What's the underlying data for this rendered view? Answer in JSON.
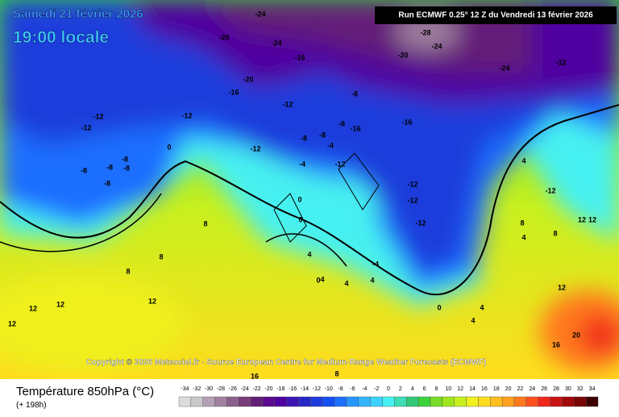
{
  "header": {
    "date": "Samedi 21 février 2026",
    "time": "19:00 locale",
    "run": "Run ECMWF 0.25° 12 Z du Vendredi 13 février 2026"
  },
  "copyright": "Copyright © 2026 Meteociel.fr - Source European Centre for Medium-Range Weather Forecasts (ECMWF)",
  "contour_labels": [
    "-24",
    "-20",
    "-24",
    "-16",
    "-28",
    "-24",
    "-20",
    "-24",
    "-12",
    "-20",
    "-16",
    "-12",
    "-8",
    "-12",
    "-12",
    "-12",
    "-8",
    "-16",
    "-16",
    "-8",
    "-8",
    "-4",
    "-12",
    "0",
    "-8",
    "-8",
    "-8",
    "-8",
    "-8",
    "-4",
    "-12",
    "4",
    "-12",
    "-12",
    "-12",
    "0",
    "8",
    "-12",
    "0",
    "12",
    "12",
    "8",
    "4",
    "8",
    "4",
    "8",
    "8",
    "-4",
    "4",
    "4",
    "4",
    "0",
    "12",
    "12",
    "12",
    "12",
    "12",
    "0",
    "4",
    "4",
    "20",
    "16",
    "16",
    "8"
  ],
  "legend": {
    "title": "Température 850hPa (°C)",
    "lead": "(+ 198h)",
    "scale": [
      -34,
      -32,
      -30,
      -28,
      -26,
      -24,
      -22,
      -20,
      -18,
      -16,
      -14,
      -12,
      -10,
      -8,
      -6,
      -4,
      -2,
      0,
      2,
      4,
      6,
      8,
      10,
      12,
      14,
      16,
      18,
      20,
      22,
      24,
      26,
      28,
      30,
      32,
      34
    ],
    "colors": [
      "#dcdcdc",
      "#c8c8c8",
      "#b4a0b4",
      "#a080a0",
      "#8c608c",
      "#783c78",
      "#641e78",
      "#5a0a8c",
      "#5000a0",
      "#3c14b4",
      "#2828c8",
      "#1e3cdc",
      "#1450f0",
      "#1e6eff",
      "#2896ff",
      "#32b4ff",
      "#3cd2ff",
      "#46f0f0",
      "#3cdcb4",
      "#32c878",
      "#3cd23c",
      "#78dc28",
      "#a0e61e",
      "#c8f01e",
      "#f0f01e",
      "#ffdc1e",
      "#ffbe1e",
      "#ffa01e",
      "#ff781e",
      "#ff501e",
      "#f0281e",
      "#c81414",
      "#a00a0a",
      "#780505",
      "#3c0000"
    ]
  }
}
